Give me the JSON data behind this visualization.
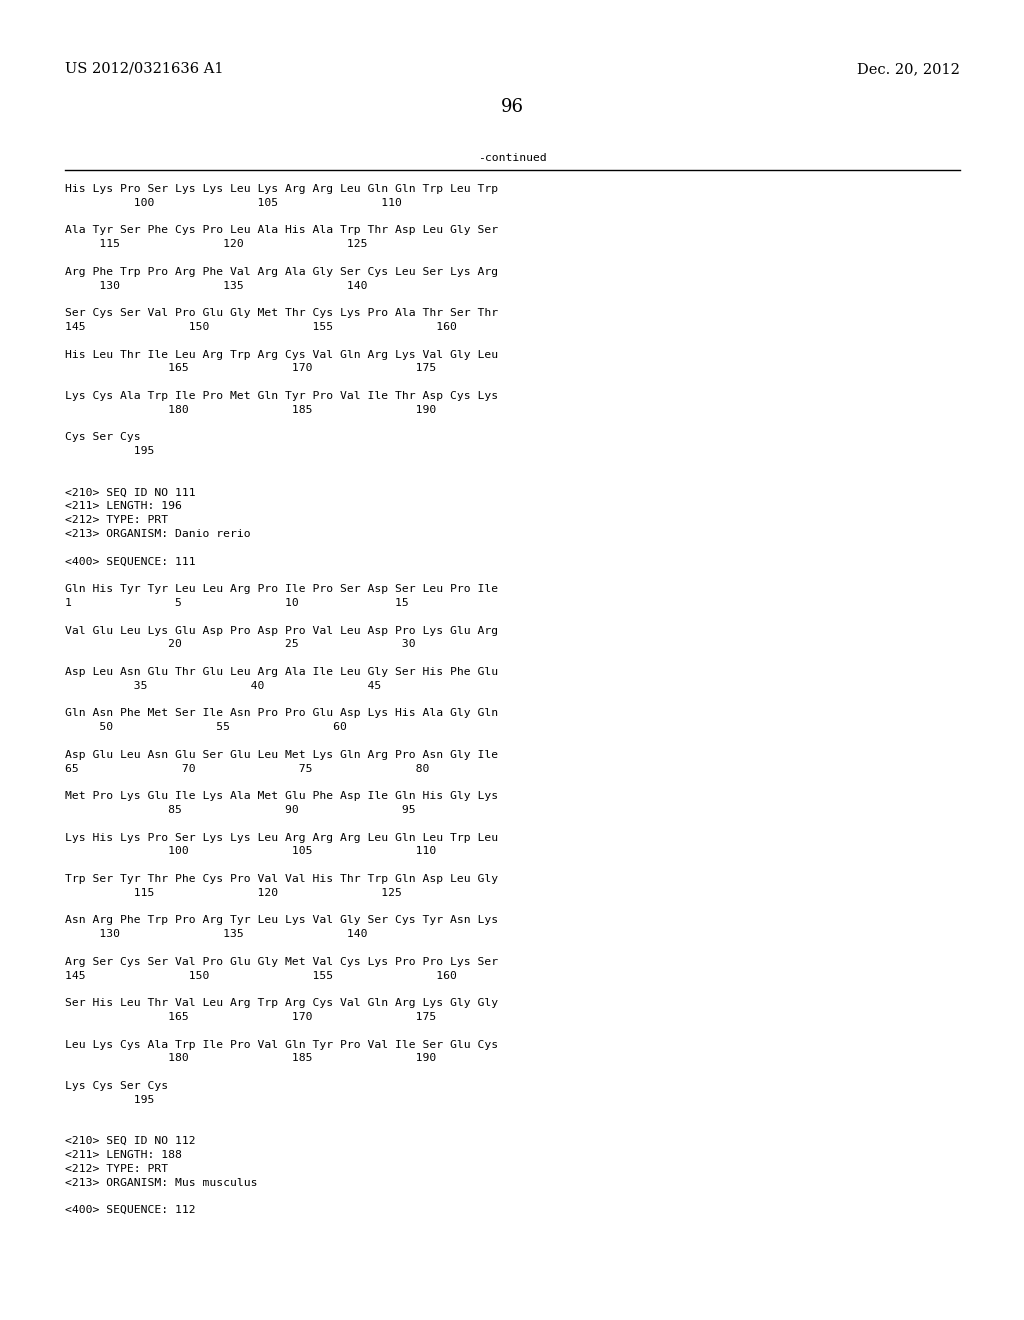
{
  "header_left": "US 2012/0321636 A1",
  "header_right": "Dec. 20, 2012",
  "page_number": "96",
  "continued_label": "-continued",
  "background_color": "#ffffff",
  "text_color": "#000000",
  "font_size_header": 10.5,
  "font_size_body": 8.2,
  "font_size_page": 13,
  "lines": [
    "His Lys Pro Ser Lys Lys Leu Lys Arg Arg Leu Gln Gln Trp Leu Trp",
    "          100               105               110",
    "",
    "Ala Tyr Ser Phe Cys Pro Leu Ala His Ala Trp Thr Asp Leu Gly Ser",
    "     115               120               125",
    "",
    "Arg Phe Trp Pro Arg Phe Val Arg Ala Gly Ser Cys Leu Ser Lys Arg",
    "     130               135               140",
    "",
    "Ser Cys Ser Val Pro Glu Gly Met Thr Cys Lys Pro Ala Thr Ser Thr",
    "145               150               155               160",
    "",
    "His Leu Thr Ile Leu Arg Trp Arg Cys Val Gln Arg Lys Val Gly Leu",
    "               165               170               175",
    "",
    "Lys Cys Ala Trp Ile Pro Met Gln Tyr Pro Val Ile Thr Asp Cys Lys",
    "               180               185               190",
    "",
    "Cys Ser Cys",
    "          195",
    "",
    "",
    "<210> SEQ ID NO 111",
    "<211> LENGTH: 196",
    "<212> TYPE: PRT",
    "<213> ORGANISM: Danio rerio",
    "",
    "<400> SEQUENCE: 111",
    "",
    "Gln His Tyr Tyr Leu Leu Arg Pro Ile Pro Ser Asp Ser Leu Pro Ile",
    "1               5               10              15",
    "",
    "Val Glu Leu Lys Glu Asp Pro Asp Pro Val Leu Asp Pro Lys Glu Arg",
    "               20               25               30",
    "",
    "Asp Leu Asn Glu Thr Glu Leu Arg Ala Ile Leu Gly Ser His Phe Glu",
    "          35               40               45",
    "",
    "Gln Asn Phe Met Ser Ile Asn Pro Pro Glu Asp Lys His Ala Gly Gln",
    "     50               55               60",
    "",
    "Asp Glu Leu Asn Glu Ser Glu Leu Met Lys Gln Arg Pro Asn Gly Ile",
    "65               70               75               80",
    "",
    "Met Pro Lys Glu Ile Lys Ala Met Glu Phe Asp Ile Gln His Gly Lys",
    "               85               90               95",
    "",
    "Lys His Lys Pro Ser Lys Lys Leu Arg Arg Arg Leu Gln Leu Trp Leu",
    "               100               105               110",
    "",
    "Trp Ser Tyr Thr Phe Cys Pro Val Val His Thr Trp Gln Asp Leu Gly",
    "          115               120               125",
    "",
    "Asn Arg Phe Trp Pro Arg Tyr Leu Lys Val Gly Ser Cys Tyr Asn Lys",
    "     130               135               140",
    "",
    "Arg Ser Cys Ser Val Pro Glu Gly Met Val Cys Lys Pro Pro Lys Ser",
    "145               150               155               160",
    "",
    "Ser His Leu Thr Val Leu Arg Trp Arg Cys Val Gln Arg Lys Gly Gly",
    "               165               170               175",
    "",
    "Leu Lys Cys Ala Trp Ile Pro Val Gln Tyr Pro Val Ile Ser Glu Cys",
    "               180               185               190",
    "",
    "Lys Cys Ser Cys",
    "          195",
    "",
    "",
    "<210> SEQ ID NO 112",
    "<211> LENGTH: 188",
    "<212> TYPE: PRT",
    "<213> ORGANISM: Mus musculus",
    "",
    "<400> SEQUENCE: 112"
  ]
}
